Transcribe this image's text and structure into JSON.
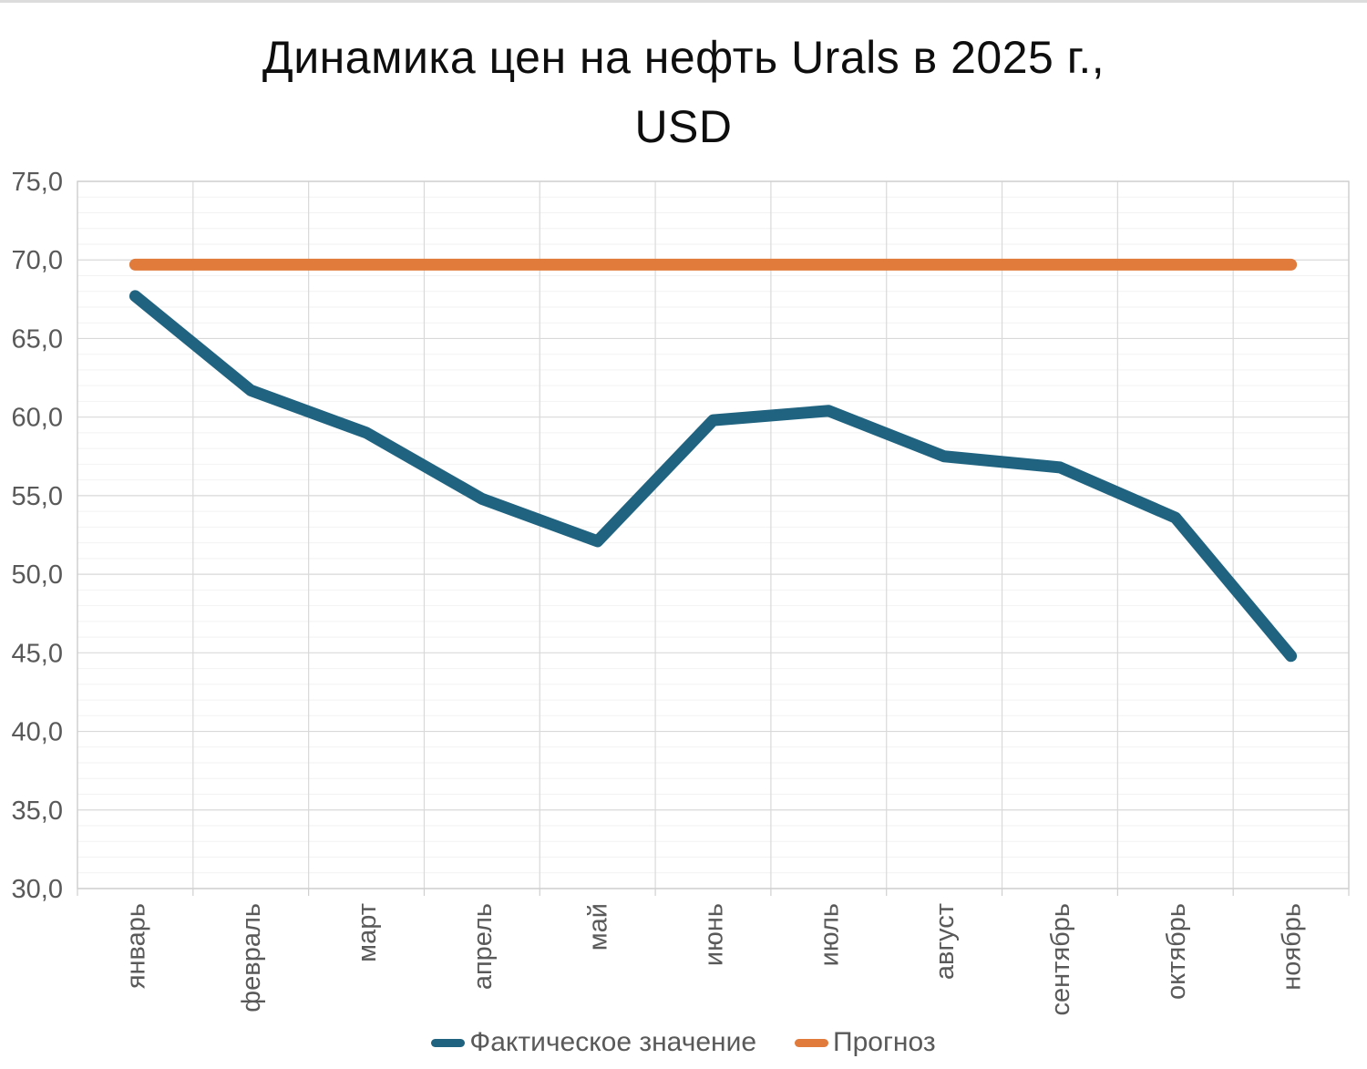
{
  "page": {
    "title_line1": "Динамика цен на нефть Urals в 2025 г.,",
    "title_line2": "USD"
  },
  "chart_data": {
    "type": "line",
    "title": "Динамика цен на нефть Urals в 2025 г., USD",
    "categories": [
      "январь",
      "февраль",
      "март",
      "апрель",
      "май",
      "июнь",
      "июль",
      "август",
      "сентябрь",
      "октябрь",
      "ноябрь"
    ],
    "series": [
      {
        "name": "Фактическое значение",
        "color": "#1F6380",
        "values": [
          67.7,
          61.7,
          59.0,
          54.8,
          52.1,
          59.8,
          60.4,
          57.5,
          56.8,
          53.6,
          44.8
        ]
      },
      {
        "name": "Прогноз",
        "color": "#E07B3C",
        "values": [
          69.7,
          69.7,
          69.7,
          69.7,
          69.7,
          69.7,
          69.7,
          69.7,
          69.7,
          69.7,
          69.7
        ]
      }
    ],
    "ylim": [
      30,
      75
    ],
    "y_major_step": 5,
    "y_minor_step": 1,
    "y_ticks": [
      "30,0",
      "35,0",
      "40,0",
      "45,0",
      "50,0",
      "55,0",
      "60,0",
      "65,0",
      "70,0",
      "75,0"
    ],
    "decimal_separator": ",",
    "grid": "major+minor",
    "legend_position": "bottom",
    "colors": {
      "axis_text": "#595959",
      "major_grid": "#D9D9D9",
      "minor_grid": "#F2F2F2",
      "plot_border": "#CFCFCF"
    }
  }
}
